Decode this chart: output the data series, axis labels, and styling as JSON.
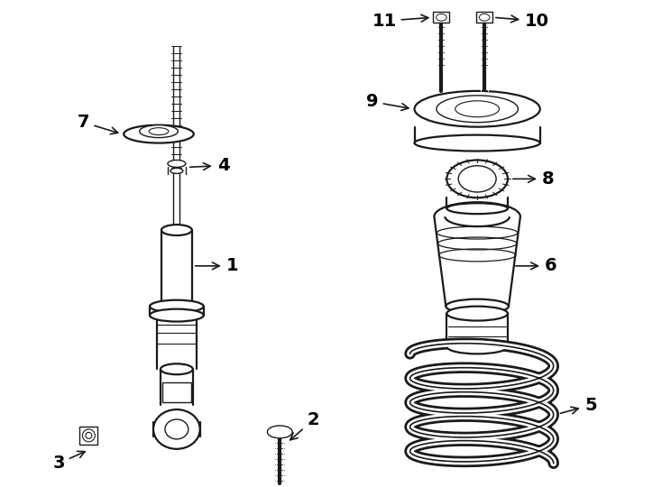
{
  "bg_color": "#ffffff",
  "lc": "#1a1a1a",
  "lw": 1.3,
  "lw2": 1.6,
  "fs": 14,
  "figw": 7.34,
  "figh": 5.4,
  "dpi": 100
}
